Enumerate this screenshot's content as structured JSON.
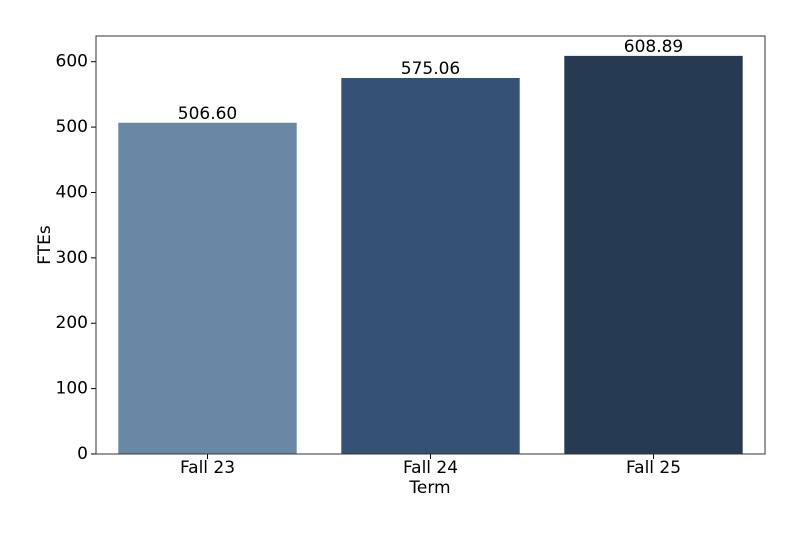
{
  "chart_data": {
    "type": "bar",
    "xlabel": "Term",
    "ylabel": "FTEs",
    "categories": [
      "Fall 23",
      "Fall 24",
      "Fall 25"
    ],
    "values": [
      506.6,
      575.06,
      608.89
    ],
    "value_labels": [
      "506.60",
      "575.06",
      "608.89"
    ],
    "colors": [
      "#6888a5",
      "#355274",
      "#273a53"
    ],
    "ylim": [
      0,
      639.3
    ],
    "yticks": [
      0,
      100,
      200,
      300,
      400,
      500,
      600
    ],
    "grid": false
  }
}
